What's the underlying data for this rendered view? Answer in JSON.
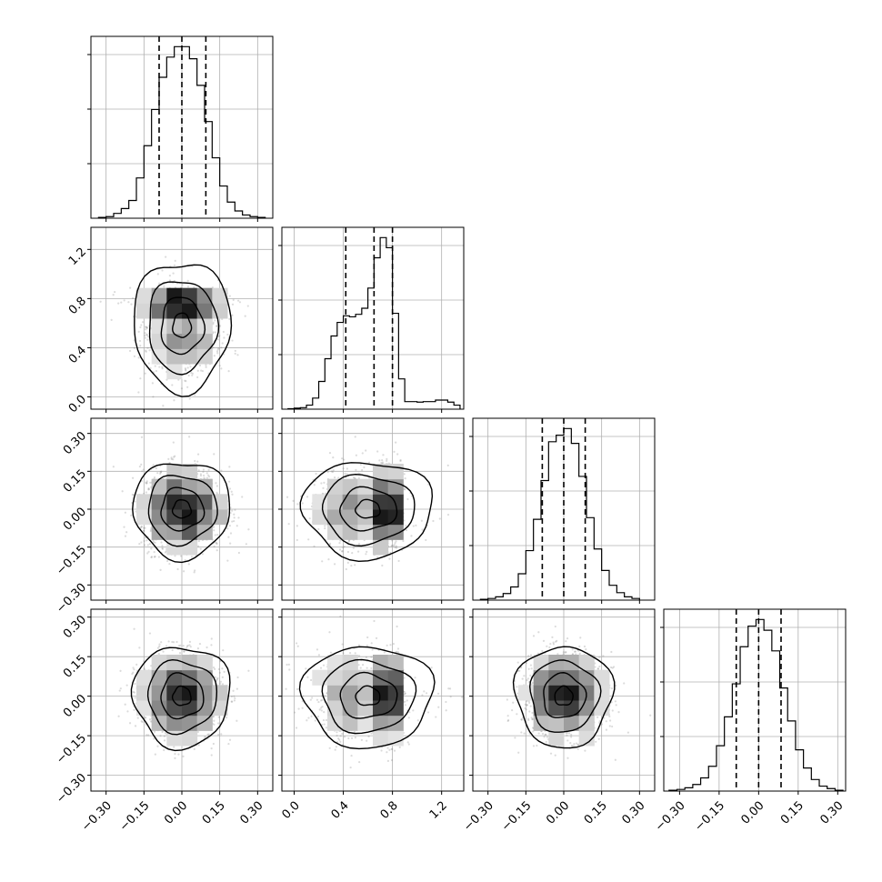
{
  "chart_data": {
    "type": "corner",
    "params": [
      {
        "index": 0,
        "range": [
          -0.36,
          0.36
        ],
        "ticks": [
          -0.3,
          -0.15,
          0.0,
          0.15,
          0.3
        ],
        "tick_labels": [
          "−0.30",
          "−0.15",
          "0.00",
          "0.15",
          "0.30"
        ],
        "center": 0.0,
        "sd": 0.08
      },
      {
        "index": 1,
        "range": [
          -0.1,
          1.38
        ],
        "ticks": [
          0.0,
          0.4,
          0.8,
          1.2
        ],
        "tick_labels": [
          "0.0",
          "0.4",
          "0.8",
          "1.2"
        ],
        "center": 0.6,
        "sd": 0.2
      },
      {
        "index": 2,
        "range": [
          -0.36,
          0.36
        ],
        "ticks": [
          -0.3,
          -0.15,
          0.0,
          0.15,
          0.3
        ],
        "tick_labels": [
          "−0.30",
          "−0.15",
          "0.00",
          "0.15",
          "0.30"
        ],
        "center": 0.0,
        "sd": 0.08
      },
      {
        "index": 3,
        "range": [
          -0.36,
          0.33
        ],
        "ticks": [
          -0.3,
          -0.15,
          0.0,
          0.15,
          0.3
        ],
        "tick_labels": [
          "−0.30",
          "−0.15",
          "0.00",
          "0.15",
          "0.30"
        ],
        "center": 0.0,
        "sd": 0.08
      }
    ],
    "histograms": [
      {
        "param": 0,
        "quantiles": [
          -0.09,
          0.0,
          0.095
        ],
        "bin_edges": [
          -0.33,
          -0.3,
          -0.27,
          -0.24,
          -0.21,
          -0.18,
          -0.15,
          -0.12,
          -0.09,
          -0.06,
          -0.03,
          0.0,
          0.03,
          0.06,
          0.09,
          0.12,
          0.15,
          0.18,
          0.21,
          0.24,
          0.27,
          0.3,
          0.33
        ],
        "counts": [
          1,
          2,
          6,
          12,
          22,
          50,
          90,
          135,
          175,
          200,
          213,
          213,
          198,
          165,
          120,
          75,
          40,
          20,
          9,
          4,
          2,
          1
        ]
      },
      {
        "param": 1,
        "quantiles": [
          0.42,
          0.65,
          0.8
        ],
        "bin_edges": [
          -0.05,
          0.0,
          0.05,
          0.1,
          0.15,
          0.2,
          0.25,
          0.3,
          0.35,
          0.4,
          0.45,
          0.5,
          0.55,
          0.6,
          0.65,
          0.7,
          0.75,
          0.8,
          0.85,
          0.9,
          0.95,
          1.0,
          1.05,
          1.1,
          1.15,
          1.2,
          1.25,
          1.3,
          1.35
        ],
        "counts": [
          1,
          2,
          3,
          8,
          22,
          55,
          100,
          145,
          172,
          185,
          183,
          188,
          200,
          240,
          300,
          340,
          320,
          190,
          60,
          15,
          15,
          14,
          15,
          15,
          18,
          18,
          14,
          8
        ]
      },
      {
        "param": 2,
        "quantiles": [
          -0.085,
          0.0,
          0.085
        ],
        "bin_edges": [
          -0.33,
          -0.3,
          -0.27,
          -0.24,
          -0.21,
          -0.18,
          -0.15,
          -0.12,
          -0.09,
          -0.06,
          -0.03,
          0.0,
          0.03,
          0.06,
          0.09,
          0.12,
          0.15,
          0.18,
          0.21,
          0.24,
          0.27,
          0.3
        ],
        "counts": [
          1,
          2,
          4,
          8,
          16,
          32,
          60,
          98,
          145,
          192,
          200,
          208,
          190,
          150,
          100,
          62,
          36,
          18,
          9,
          4,
          2
        ]
      },
      {
        "param": 3,
        "quantiles": [
          -0.085,
          0.0,
          0.085
        ],
        "bin_edges": [
          -0.34,
          -0.31,
          -0.28,
          -0.25,
          -0.22,
          -0.19,
          -0.16,
          -0.13,
          -0.1,
          -0.07,
          -0.04,
          -0.01,
          0.02,
          0.05,
          0.08,
          0.11,
          0.14,
          0.17,
          0.2,
          0.23,
          0.26,
          0.29,
          0.32
        ],
        "counts": [
          1,
          2,
          4,
          8,
          16,
          30,
          55,
          90,
          130,
          175,
          200,
          208,
          195,
          170,
          125,
          85,
          50,
          28,
          14,
          6,
          3,
          1
        ]
      }
    ],
    "grid": true,
    "quantile_style": "dashed"
  }
}
